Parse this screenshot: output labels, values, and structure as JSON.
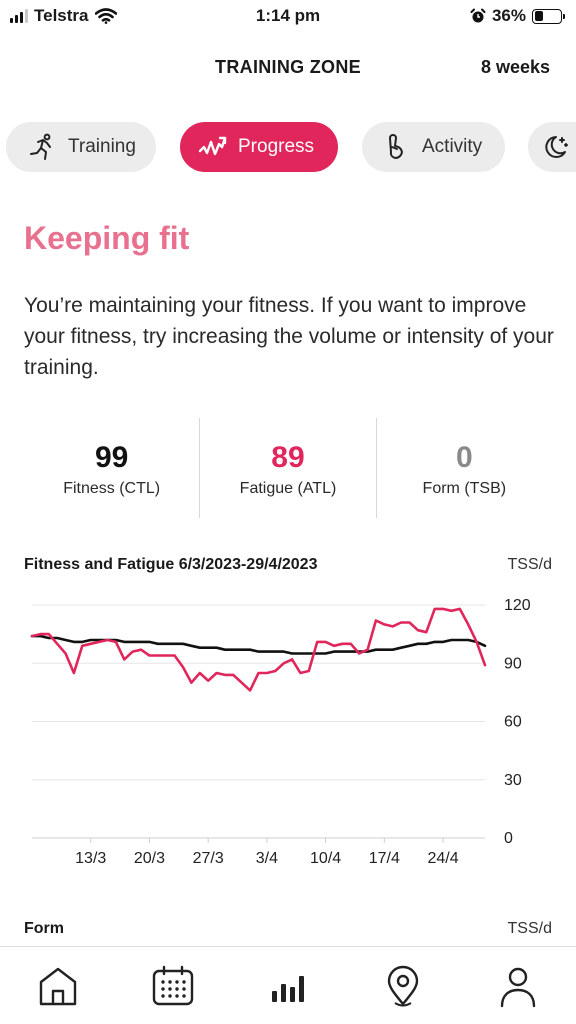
{
  "status_bar": {
    "carrier": "Telstra",
    "time": "1:14 pm",
    "battery": "36%",
    "battery_level": 0.36
  },
  "header": {
    "title": "TRAINING ZONE",
    "period": "8 weeks"
  },
  "tabs": [
    {
      "label": "Training",
      "icon": "running-person-icon",
      "active": false
    },
    {
      "label": "Progress",
      "icon": "trend-zigzag-icon",
      "active": true
    },
    {
      "label": "Activity",
      "icon": "footprint-icon",
      "active": false
    },
    {
      "label": "",
      "icon": "moon-stars-icon",
      "active": false
    }
  ],
  "status": {
    "title": "Keeping fit",
    "description": "You’re maintaining your fitness. If you want to improve your fitness, try increasing the volume or intensity of your training."
  },
  "metrics": [
    {
      "value": "99",
      "label": "Fitness (CTL)",
      "color": "#111111"
    },
    {
      "value": "89",
      "label": "Fatigue (ATL)",
      "color": "#e0265a"
    },
    {
      "value": "0",
      "label": "Form (TSB)",
      "color": "#8a8a8a"
    }
  ],
  "chart_data": {
    "type": "line",
    "title": "Fitness and Fatigue 6/3/2023-29/4/2023",
    "unit": "TSS/d",
    "ylim": [
      0,
      120
    ],
    "yticks": [
      0,
      30,
      60,
      90,
      120
    ],
    "xtick_labels": [
      "13/3",
      "20/3",
      "27/3",
      "3/4",
      "10/4",
      "17/4",
      "24/4"
    ],
    "grid": true,
    "series": [
      {
        "color": "#111111",
        "x": [
          "6/3",
          "7/3",
          "8/3",
          "9/3",
          "10/3",
          "11/3",
          "12/3",
          "13/3",
          "14/3",
          "15/3",
          "16/3",
          "17/3",
          "18/3",
          "19/3",
          "20/3",
          "21/3",
          "22/3",
          "23/3",
          "24/3",
          "25/3",
          "26/3",
          "27/3",
          "28/3",
          "29/3",
          "30/3",
          "31/3",
          "1/4",
          "2/4",
          "3/4",
          "4/4",
          "5/4",
          "6/4",
          "7/4",
          "8/4",
          "9/4",
          "10/4",
          "11/4",
          "12/4",
          "13/4",
          "14/4",
          "15/4",
          "16/4",
          "17/4",
          "18/4",
          "19/4",
          "20/4",
          "21/4",
          "22/4",
          "23/4",
          "24/4",
          "25/4",
          "26/4",
          "27/4",
          "28/4",
          "29/4"
        ],
        "values": [
          104,
          104,
          103,
          103,
          102,
          101,
          101,
          102,
          102,
          102,
          102,
          101,
          101,
          101,
          101,
          100,
          100,
          100,
          100,
          99,
          98,
          98,
          98,
          97,
          97,
          97,
          97,
          96,
          96,
          96,
          96,
          95,
          95,
          95,
          95,
          95,
          96,
          96,
          96,
          96,
          96,
          97,
          97,
          97,
          98,
          99,
          100,
          100,
          101,
          101,
          102,
          102,
          102,
          101,
          99
        ]
      },
      {
        "color": "#e0265a",
        "x": [
          "6/3",
          "7/3",
          "8/3",
          "9/3",
          "10/3",
          "11/3",
          "12/3",
          "13/3",
          "14/3",
          "15/3",
          "16/3",
          "17/3",
          "18/3",
          "19/3",
          "20/3",
          "21/3",
          "22/3",
          "23/3",
          "24/3",
          "25/3",
          "26/3",
          "27/3",
          "28/3",
          "29/3",
          "30/3",
          "31/3",
          "1/4",
          "2/4",
          "3/4",
          "4/4",
          "5/4",
          "6/4",
          "7/4",
          "8/4",
          "9/4",
          "10/4",
          "11/4",
          "12/4",
          "13/4",
          "14/4",
          "15/4",
          "16/4",
          "17/4",
          "18/4",
          "19/4",
          "20/4",
          "21/4",
          "22/4",
          "23/4",
          "24/4",
          "25/4",
          "26/4",
          "27/4",
          "28/4",
          "29/4"
        ],
        "values": [
          104,
          105,
          105,
          100,
          95,
          85,
          99,
          100,
          101,
          102,
          101,
          92,
          96,
          97,
          94,
          94,
          94,
          94,
          88,
          80,
          85,
          81,
          85,
          84,
          84,
          80,
          76,
          85,
          85,
          86,
          90,
          92,
          85,
          86,
          101,
          101,
          99,
          100,
          100,
          95,
          97,
          112,
          110,
          109,
          111,
          111,
          107,
          106,
          118,
          118,
          117,
          118,
          110,
          101,
          89
        ]
      }
    ]
  },
  "form_section": {
    "title": "Form",
    "unit": "TSS/d"
  },
  "bottom_nav": [
    {
      "icon": "home-icon",
      "active": false
    },
    {
      "icon": "calendar-icon",
      "active": false
    },
    {
      "icon": "bar-chart-icon",
      "active": true
    },
    {
      "icon": "map-pin-icon",
      "active": false
    },
    {
      "icon": "person-icon",
      "active": false
    }
  ]
}
